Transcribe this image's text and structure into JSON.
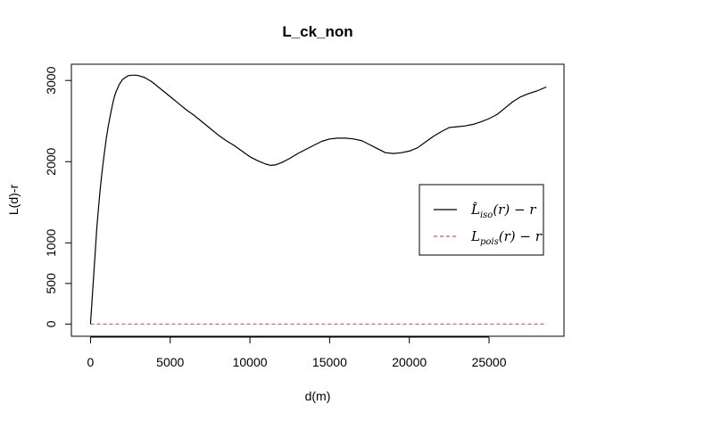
{
  "chart_data": {
    "type": "line",
    "title": "L_ck_non",
    "xlabel": "d(m)",
    "ylabel": "L(d)-r",
    "xlim": [
      -1200,
      29700
    ],
    "ylim": [
      -150,
      3200
    ],
    "x_ticks": [
      0,
      5000,
      10000,
      15000,
      20000,
      25000
    ],
    "y_ticks": [
      0,
      500,
      1000,
      2000,
      3000
    ],
    "grid": false,
    "legend_position": "right",
    "series": [
      {
        "name": "L̂iso(r) − r",
        "legend_main": "L̂",
        "legend_sub": "iso",
        "legend_tail": "(r) − r",
        "color": "#000000",
        "dash": "solid",
        "x": [
          0,
          100,
          200,
          300,
          400,
          500,
          600,
          700,
          800,
          900,
          1000,
          1100,
          1200,
          1300,
          1400,
          1500,
          1600,
          1800,
          2000,
          2200,
          2400,
          2600,
          2800,
          3000,
          3400,
          3800,
          4000,
          4500,
          5000,
          5500,
          6000,
          6500,
          7000,
          7500,
          8000,
          8500,
          9000,
          9500,
          10000,
          10500,
          11000,
          11300,
          11600,
          12000,
          12500,
          13000,
          13500,
          14000,
          14500,
          15000,
          15500,
          16000,
          16500,
          17000,
          17500,
          18000,
          18500,
          19000,
          19500,
          20000,
          20500,
          21000,
          21500,
          22000,
          22500,
          23000,
          23500,
          24000,
          24500,
          25000,
          25500,
          26000,
          26500,
          27000,
          27500,
          28000,
          28600
        ],
        "y": [
          0,
          300,
          600,
          900,
          1200,
          1430,
          1650,
          1830,
          2000,
          2150,
          2300,
          2420,
          2530,
          2630,
          2720,
          2800,
          2860,
          2950,
          3010,
          3040,
          3060,
          3065,
          3065,
          3060,
          3035,
          2990,
          2960,
          2880,
          2800,
          2720,
          2640,
          2570,
          2490,
          2410,
          2330,
          2260,
          2200,
          2130,
          2060,
          2010,
          1970,
          1955,
          1960,
          1990,
          2040,
          2100,
          2150,
          2200,
          2250,
          2280,
          2290,
          2290,
          2280,
          2260,
          2210,
          2160,
          2110,
          2100,
          2110,
          2130,
          2170,
          2240,
          2310,
          2370,
          2420,
          2430,
          2440,
          2460,
          2490,
          2530,
          2580,
          2660,
          2740,
          2800,
          2840,
          2870,
          2920
        ]
      },
      {
        "name": "Lpois(r) − r",
        "legend_main": "L",
        "legend_sub": "pois",
        "legend_tail": "(r) − r",
        "color": "#d81b60",
        "dash": "dashed",
        "x": [
          0,
          28600
        ],
        "y": [
          0,
          0
        ]
      }
    ]
  }
}
